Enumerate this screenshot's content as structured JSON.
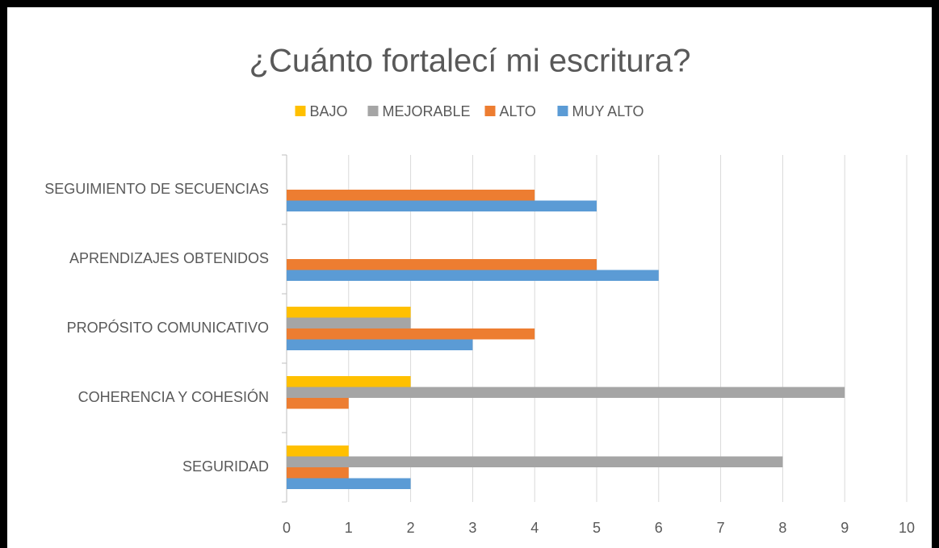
{
  "chart_data": {
    "type": "bar",
    "orientation": "horizontal",
    "title": "¿Cuánto fortalecí mi escritura?",
    "categories": [
      "SEGUIMIENTO DE SECUENCIAS",
      "APRENDIZAJES OBTENIDOS",
      "PROPÓSITO COMUNICATIVO",
      "COHERENCIA Y COHESIÓN",
      "SEGURIDAD"
    ],
    "series": [
      {
        "name": "BAJO",
        "color": "#ffc000",
        "values": [
          0,
          0,
          2,
          2,
          1
        ]
      },
      {
        "name": "MEJORABLE",
        "color": "#a5a5a5",
        "values": [
          0,
          0,
          2,
          9,
          8
        ]
      },
      {
        "name": "ALTO",
        "color": "#ed7d31",
        "values": [
          4,
          5,
          4,
          1,
          1
        ]
      },
      {
        "name": "MUY ALTO",
        "color": "#5b9bd5",
        "values": [
          5,
          6,
          3,
          0,
          2
        ]
      }
    ],
    "xlim": [
      0,
      10
    ],
    "xticks": [
      0,
      1,
      2,
      3,
      4,
      5,
      6,
      7,
      8,
      9,
      10
    ],
    "grid": true,
    "legend": "top"
  }
}
